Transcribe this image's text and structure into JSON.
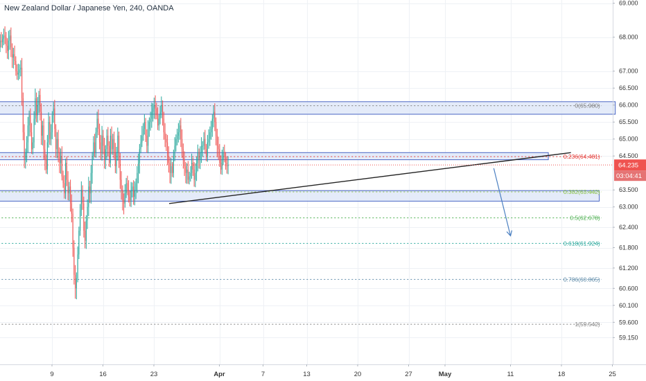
{
  "chart_data": {
    "type": "candlestick",
    "title": "New Zealand Dollar / Japanese Yen, 240, OANDA",
    "ylim": [
      58.95,
      69.2
    ],
    "yticks": [
      "69.000",
      "68.000",
      "67.000",
      "66.500",
      "66.000",
      "65.500",
      "65.000",
      "64.500",
      "63.500",
      "63.000",
      "62.400",
      "61.800",
      "61.200",
      "60.600",
      "60.100",
      "59.600",
      "59.150"
    ],
    "ytick_values": [
      69.0,
      68.0,
      67.0,
      66.5,
      66.0,
      65.5,
      65.0,
      64.5,
      63.5,
      63.0,
      62.4,
      61.8,
      61.2,
      60.6,
      60.1,
      59.6,
      59.15
    ],
    "xticks": [
      {
        "label": "9",
        "day": 9,
        "bold": false
      },
      {
        "label": "16",
        "day": 16,
        "bold": false
      },
      {
        "label": "23",
        "day": 23,
        "bold": false
      },
      {
        "label": "Apr",
        "day": 32,
        "bold": true
      },
      {
        "label": "7",
        "day": 38,
        "bold": false
      },
      {
        "label": "13",
        "day": 44,
        "bold": false
      },
      {
        "label": "20",
        "day": 51,
        "bold": false
      },
      {
        "label": "27",
        "day": 58,
        "bold": false
      },
      {
        "label": "May",
        "day": 63,
        "bold": true
      },
      {
        "label": "11",
        "day": 72,
        "bold": false
      },
      {
        "label": "18",
        "day": 79,
        "bold": false
      },
      {
        "label": "25",
        "day": 86,
        "bold": false
      }
    ],
    "x_axis": {
      "unit": "day (March = 1..31, April = 32..61, May = 62..)",
      "range_days": [
        1.5,
        89
      ]
    },
    "current_price": {
      "value": "64.235",
      "y": 64.235,
      "countdown": "03:04:41"
    },
    "bars_per_day": 6,
    "closes": [
      67.7,
      67.9,
      67.85,
      67.95,
      68.05,
      68.0,
      67.75,
      67.6,
      67.9,
      68.05,
      67.7,
      67.4,
      67.5,
      67.3,
      67.0,
      66.9,
      66.95,
      67.05,
      67.1,
      66.2,
      65.2,
      64.4,
      64.6,
      64.9,
      65.4,
      65.7,
      65.2,
      64.7,
      64.9,
      65.6,
      66.2,
      65.7,
      66.0,
      66.3,
      65.8,
      65.1,
      65.4,
      64.7,
      64.4,
      64.1,
      64.9,
      65.5,
      65.0,
      65.2,
      65.7,
      65.9,
      65.3,
      64.7,
      65.0,
      64.6,
      64.3,
      64.5,
      63.9,
      63.7,
      63.4,
      64.3,
      63.8,
      63.4,
      63.6,
      63.1,
      62.8,
      61.8,
      61.0,
      60.6,
      60.9,
      61.6,
      62.3,
      62.9,
      63.5,
      63.1,
      62.3,
      62.0,
      62.6,
      63.0,
      63.6,
      63.4,
      64.0,
      64.5,
      64.9,
      64.6,
      65.2,
      65.6,
      65.3,
      64.9,
      64.6,
      65.1,
      64.8,
      64.4,
      64.7,
      65.1,
      64.8,
      64.3,
      65.1,
      64.7,
      65.0,
      64.6,
      64.2,
      64.6,
      65.1,
      64.4,
      63.8,
      63.5,
      63.2,
      63.1,
      63.4,
      63.7,
      63.5,
      63.3,
      63.2,
      63.5,
      63.6,
      63.3,
      63.5,
      63.7,
      64.0,
      64.3,
      64.7,
      64.9,
      65.1,
      65.3,
      65.5,
      65.1,
      64.8,
      65.3,
      65.5,
      65.6,
      65.8,
      65.9,
      66.0,
      65.9,
      65.7,
      65.4,
      65.6,
      65.8,
      66.0,
      65.6,
      65.2,
      65.0,
      64.9,
      64.5,
      64.3,
      64.0,
      64.2,
      64.0,
      64.5,
      64.8,
      65.0,
      65.1,
      65.2,
      65.4,
      65.0,
      64.7,
      64.4,
      64.2,
      64.0,
      64.1,
      63.8,
      63.9,
      64.0,
      64.3,
      64.1,
      63.8,
      64.0,
      64.3,
      64.6,
      64.4,
      64.6,
      64.8,
      64.8,
      65.0,
      64.7,
      64.5,
      64.9,
      65.0,
      65.2,
      65.3,
      65.6,
      65.8,
      65.5,
      65.1,
      64.8,
      64.7,
      64.3,
      64.1,
      64.4,
      64.6,
      64.5,
      64.3,
      64.2,
      64.24
    ],
    "fib_levels": [
      {
        "label": "0(65.980)",
        "value": 65.98,
        "color": "#808080"
      },
      {
        "label": "0.236(64.481)",
        "value": 64.481,
        "color": "#e53935"
      },
      {
        "label": "0.382(63.442)",
        "value": 63.442,
        "color": "#8bc34a"
      },
      {
        "label": "0.5(62.678)",
        "value": 62.678,
        "color": "#4caf50"
      },
      {
        "label": "0.618(61.924)",
        "value": 61.924,
        "color": "#26a69a"
      },
      {
        "label": "0.786(60.865)",
        "value": 60.865,
        "color": "#5d8aa8"
      },
      {
        "label": "1(59.542)",
        "value": 59.542,
        "color": "#808080"
      }
    ],
    "zones": [
      {
        "x_day_from": 1.6,
        "x_day_to": 86.4,
        "y_top": 66.1,
        "y_bottom": 65.73
      },
      {
        "x_day_from": 1.6,
        "x_day_to": 77.2,
        "y_top": 64.6,
        "y_bottom": 64.39
      },
      {
        "x_day_from": 1.6,
        "x_day_to": 84.2,
        "y_top": 63.48,
        "y_bottom": 63.17
      }
    ],
    "trendline": {
      "from": [
        25.1,
        63.1
      ],
      "to": [
        80.3,
        64.6
      ]
    },
    "projection_arrow": {
      "from": [
        69.7,
        64.14
      ],
      "to": [
        72.0,
        62.15
      ]
    },
    "colors": {
      "up": "#26a69a",
      "down": "#ef5350",
      "zone_fill": "#dbe4f7",
      "zone_stroke": "#4a66c4",
      "trend": "#222222",
      "arrow": "#4a7fc1",
      "price_badge": "#ef5350",
      "countdown_badge": "#e57373",
      "grid": "#eef1f5"
    }
  }
}
